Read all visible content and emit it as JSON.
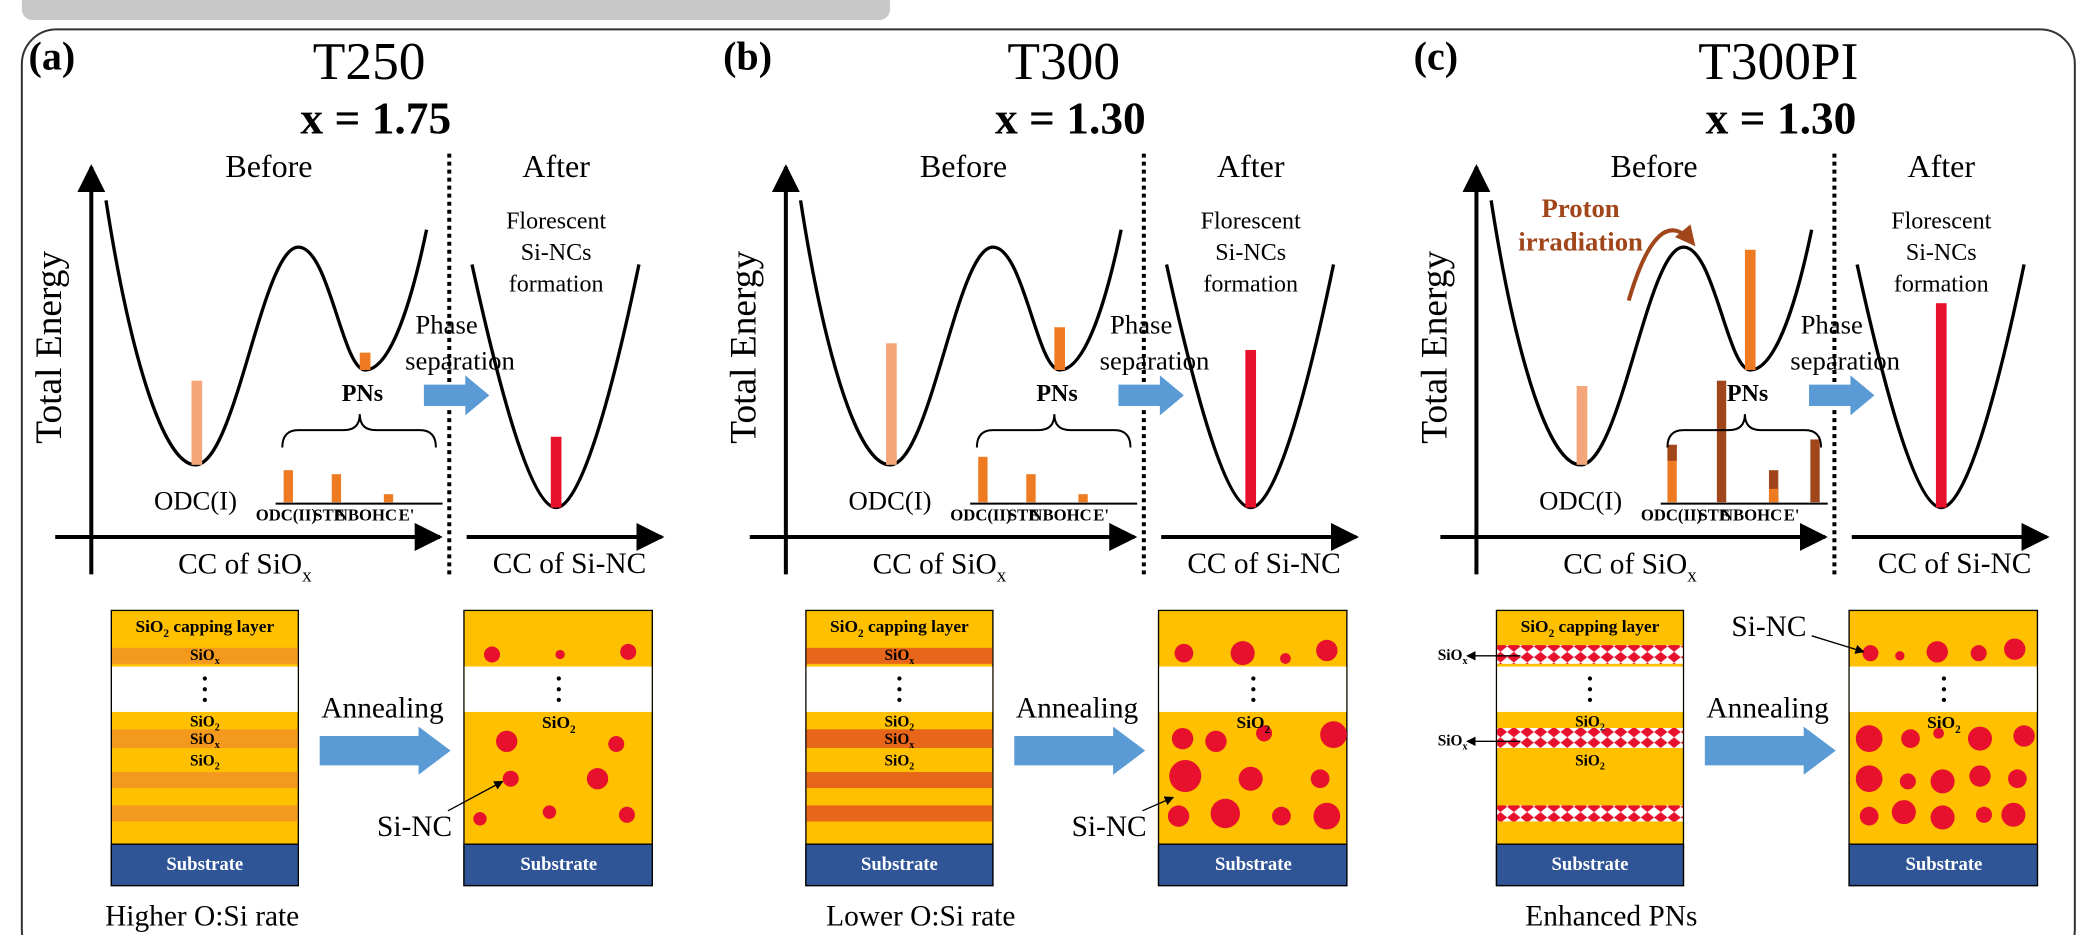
{
  "panels": [
    {
      "label": "(a)",
      "title": "T250",
      "x_value": "x = 1.75",
      "before": "Before",
      "after": "After",
      "y_axis": "Total Energy",
      "after_note": [
        "Florescent",
        "Si-NCs",
        "formation"
      ],
      "transition": [
        "Phase",
        "separation"
      ],
      "pns": "PNs",
      "ground_defect": "ODC(I)",
      "defects": [
        "ODC(II)",
        "STE",
        "NBOHC",
        "E'"
      ],
      "x_axis_left": [
        "CC of SiO",
        "x"
      ],
      "x_axis_right": "CC of Si-NC",
      "capping_layer": [
        "SiO",
        "2",
        " capping layer"
      ],
      "stack_labels": [
        [
          "SiO",
          "x"
        ],
        [
          "SiO",
          "2"
        ],
        [
          "SiO",
          "x"
        ],
        [
          "SiO",
          "2"
        ]
      ],
      "substrate": "Substrate",
      "process": "Annealing",
      "after_layer": [
        "SiO",
        "2"
      ],
      "after_substrate": "Substrate",
      "nc_label": "Si-NC",
      "caption": "Higher O:Si rate"
    },
    {
      "label": "(b)",
      "title": "T300",
      "x_value": "x = 1.30",
      "before": "Before",
      "after": "After",
      "y_axis": "Total Energy",
      "after_note": [
        "Florescent",
        "Si-NCs",
        "formation"
      ],
      "transition": [
        "Phase",
        "separation"
      ],
      "pns": "PNs",
      "ground_defect": "ODC(I)",
      "defects": [
        "ODC(II)",
        "STE",
        "NBOHC",
        "E'"
      ],
      "x_axis_left": [
        "CC of SiO",
        "x"
      ],
      "x_axis_right": "CC of Si-NC",
      "capping_layer": [
        "SiO",
        "2",
        " capping layer"
      ],
      "stack_labels": [
        [
          "SiO",
          "x"
        ],
        [
          "SiO",
          "2"
        ],
        [
          "SiO",
          "x"
        ],
        [
          "SiO",
          "2"
        ]
      ],
      "substrate": "Substrate",
      "process": "Annealing",
      "after_layer": [
        "SiO",
        "2"
      ],
      "after_substrate": "Substrate",
      "nc_label": "Si-NC",
      "caption": "Lower O:Si rate"
    },
    {
      "label": "(c)",
      "title": "T300PI",
      "x_value": "x = 1.30",
      "before": "Before",
      "after": "After",
      "y_axis": "Total Energy",
      "after_note": [
        "Florescent",
        "Si-NCs",
        "formation"
      ],
      "transition": [
        "Phase",
        "separation"
      ],
      "pns": "PNs",
      "ground_defect": "ODC(I)",
      "defects": [
        "ODC(II)",
        "STE",
        "NBOHC",
        "E'"
      ],
      "x_axis_left": [
        "CC of SiO",
        "x"
      ],
      "x_axis_right": "CC of Si-NC",
      "capping_layer": [
        "SiO",
        "2",
        " capping layer"
      ],
      "stack_labels": [
        [
          "SiO",
          "2"
        ],
        [
          "SiO",
          "2"
        ]
      ],
      "side_labels": [
        [
          "SiO",
          "x"
        ],
        [
          "SiO",
          "x"
        ]
      ],
      "annotation": [
        "Proton",
        "irradiation"
      ],
      "substrate": "Substrate",
      "process": "Annealing",
      "after_layer": [
        "SiO",
        "2"
      ],
      "after_substrate": "Substrate",
      "nc_label": "Si-NC",
      "caption": "Enhanced PNs"
    }
  ]
}
